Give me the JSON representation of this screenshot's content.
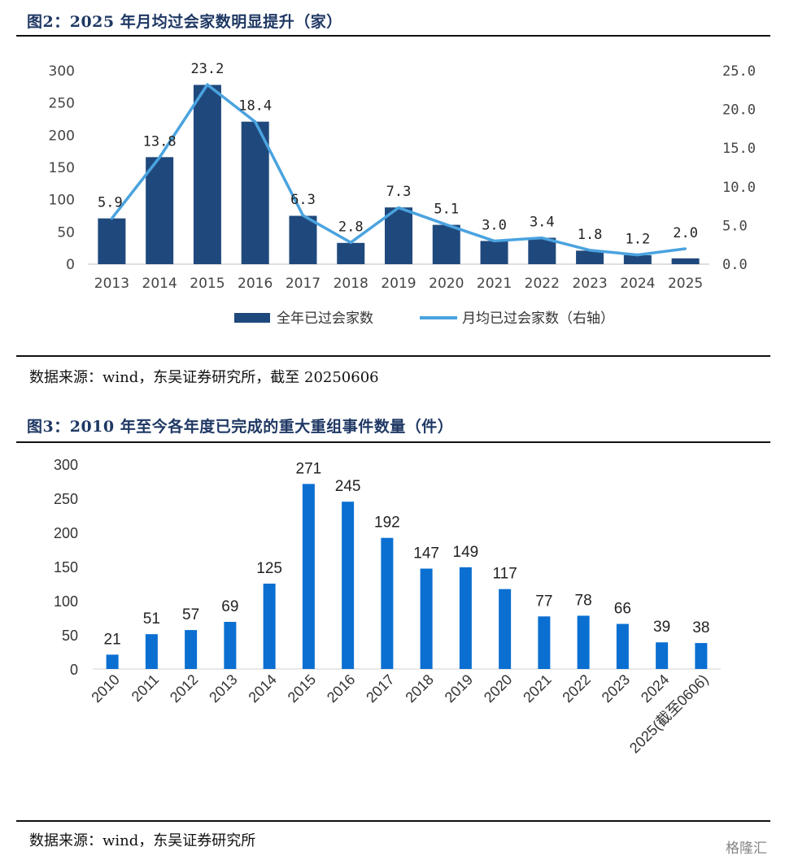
{
  "figure2": {
    "title": "图2：2025 年月均过会家数明显提升（家）",
    "source": "数据来源：wind，东吴证券研究所，截至 20250606",
    "chart_data": {
      "type": "bar+line",
      "categories": [
        "2013",
        "2014",
        "2015",
        "2016",
        "2017",
        "2018",
        "2019",
        "2020",
        "2021",
        "2022",
        "2023",
        "2024",
        "2025"
      ],
      "series": [
        {
          "name": "全年已过会家数",
          "type": "bar",
          "axis": "left",
          "color": "#1f497d",
          "values": [
            71,
            166,
            278,
            221,
            75,
            33,
            88,
            61,
            36,
            41,
            21,
            14,
            9
          ]
        },
        {
          "name": "月均已过会家数（右轴）",
          "type": "line",
          "axis": "right",
          "color": "#4aa3df",
          "values": [
            5.9,
            13.8,
            23.2,
            18.4,
            6.3,
            2.8,
            7.3,
            5.1,
            3.0,
            3.4,
            1.8,
            1.2,
            2.0
          ],
          "labels": [
            "5.9",
            "13.8",
            "23.2",
            "18.4",
            "6.3",
            "2.8",
            "7.3",
            "5.1",
            "3.0",
            "3.4",
            "1.8",
            "1.2",
            "2.0"
          ]
        }
      ],
      "y_left": {
        "ylim": [
          0,
          300
        ],
        "ticks": [
          "0",
          "50",
          "100",
          "150",
          "200",
          "250",
          "300"
        ]
      },
      "y_right": {
        "ylim": [
          0,
          25
        ],
        "ticks": [
          "0.0",
          "5.0",
          "10.0",
          "15.0",
          "20.0",
          "25.0"
        ]
      },
      "legend": "bottom"
    }
  },
  "figure3": {
    "title": "图3：2010 年至今各年度已完成的重大重组事件数量（件）",
    "source": "数据来源：wind，东吴证券研究所",
    "chart_data": {
      "type": "bar",
      "categories": [
        "2010",
        "2011",
        "2012",
        "2013",
        "2014",
        "2015",
        "2016",
        "2017",
        "2018",
        "2019",
        "2020",
        "2021",
        "2022",
        "2023",
        "2024",
        "2025(截至0606)"
      ],
      "values": [
        21,
        51,
        57,
        69,
        125,
        271,
        245,
        192,
        147,
        149,
        117,
        77,
        78,
        66,
        39,
        38
      ],
      "color": "#0a6fd1",
      "ylim": [
        0,
        300
      ],
      "ticks": [
        "0",
        "50",
        "100",
        "150",
        "200",
        "250",
        "300"
      ]
    }
  },
  "watermark": "格隆汇"
}
